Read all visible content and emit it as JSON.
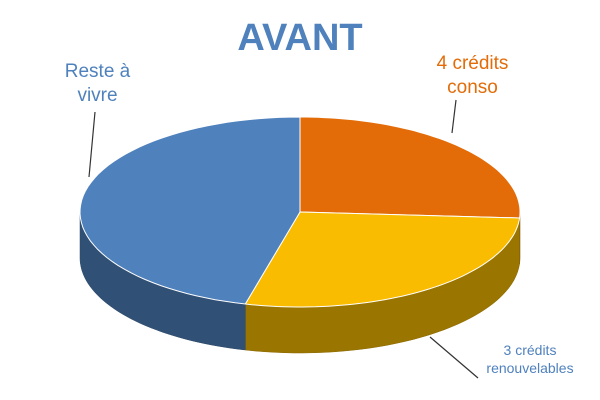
{
  "chart_data": {
    "type": "pie3d",
    "title": "AVANT",
    "categories": [
      "4 crédits conso",
      "3 crédits renouvelables",
      "Reste à vivre"
    ],
    "values": [
      26,
      28,
      46
    ],
    "colors": [
      "#e36c09",
      "#f9bc00",
      "#4f81bd"
    ]
  }
}
